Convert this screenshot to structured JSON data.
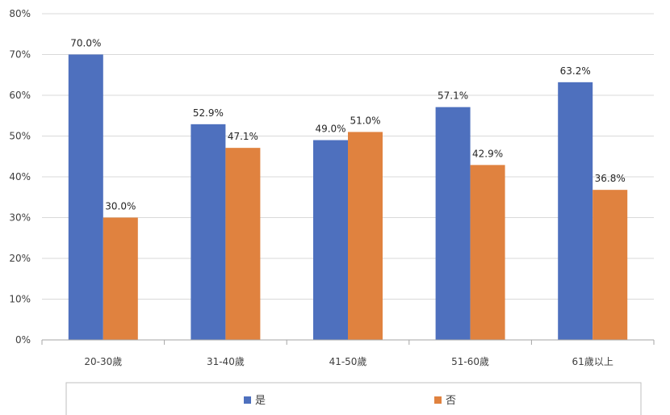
{
  "chart_data": {
    "type": "bar",
    "title": "",
    "xlabel": "",
    "ylabel": "",
    "categories": [
      "20-30歲",
      "31-40歲",
      "41-50歲",
      "51-60歲",
      "61歲以上"
    ],
    "series": [
      {
        "name": "是",
        "values": [
          70.0,
          52.9,
          49.0,
          57.1,
          63.2
        ],
        "labels": [
          "70.0%",
          "52.9%",
          "49.0%",
          "57.1%",
          "63.2%"
        ],
        "color": "#4E70BE"
      },
      {
        "name": "否",
        "values": [
          30.0,
          47.1,
          51.0,
          42.9,
          36.8
        ],
        "labels": [
          "30.0%",
          "47.1%",
          "51.0%",
          "42.9%",
          "36.8%"
        ],
        "color": "#E0823F"
      }
    ],
    "ylim": [
      0,
      80
    ],
    "yticks": [
      "0%",
      "10%",
      "20%",
      "30%",
      "40%",
      "50%",
      "60%",
      "70%",
      "80%"
    ],
    "grid": true,
    "legend_position": "bottom"
  }
}
